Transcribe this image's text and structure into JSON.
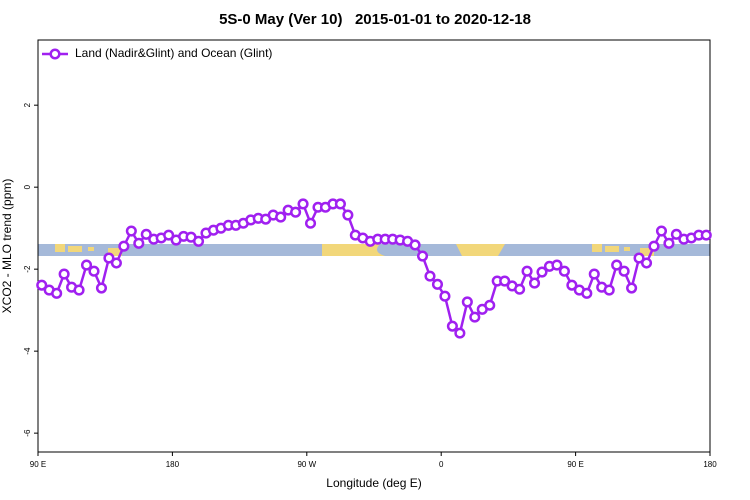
{
  "chart_data": {
    "type": "line",
    "title": "5S-0 May (Ver 10)   2015-01-01 to 2020-12-18",
    "xlabel": "Longitude (deg E)",
    "ylabel": "XCO2 - MLO trend (ppm)",
    "legend": "top-left",
    "xlim": [
      90,
      540
    ],
    "xticks": [
      {
        "value": 90,
        "label": "90 E"
      },
      {
        "value": 180,
        "label": "180"
      },
      {
        "value": 270,
        "label": "90 W"
      },
      {
        "value": 360,
        "label": "0"
      },
      {
        "value": 450,
        "label": "90 E"
      },
      {
        "value": 540,
        "label": "180"
      }
    ],
    "ylim": [
      -6.46,
      3.59
    ],
    "yticks": [
      2,
      0,
      -2,
      -4,
      -6
    ],
    "x": [
      92.5,
      97.5,
      102.5,
      107.5,
      112.5,
      117.5,
      122.5,
      127.5,
      132.5,
      137.5,
      142.5,
      147.5,
      152.5,
      157.5,
      162.5,
      167.5,
      172.5,
      177.5,
      182.5,
      187.5,
      192.5,
      197.5,
      202.5,
      207.5,
      212.5,
      217.5,
      222.5,
      227.5,
      232.5,
      237.5,
      242.5,
      247.5,
      252.5,
      257.5,
      262.5,
      267.5,
      272.5,
      277.5,
      282.5,
      287.5,
      292.5,
      297.5,
      302.5,
      307.5,
      312.5,
      317.5,
      322.5,
      327.5,
      332.5,
      337.5,
      342.5,
      347.5,
      352.5,
      357.5,
      362.5,
      367.5,
      372.5,
      377.5,
      382.5,
      387.5,
      392.5,
      397.5,
      402.5,
      407.5,
      412.5,
      417.5,
      422.5,
      427.5,
      432.5,
      437.5,
      442.5,
      447.5,
      452.5,
      457.5,
      462.5,
      467.5,
      472.5,
      477.5,
      482.5,
      487.5,
      492.5,
      497.5,
      502.5,
      507.5,
      512.5,
      517.5,
      522.5,
      527.5,
      532.5,
      537.5
    ],
    "series": [
      {
        "name": "Land (Nadir&Glint) and Ocean (Glint)",
        "color": "#a020f0",
        "values": [
          -2.39,
          -2.51,
          -2.59,
          -2.12,
          -2.44,
          -2.51,
          -1.9,
          -2.05,
          -2.46,
          -1.73,
          -1.85,
          -1.44,
          -1.07,
          -1.37,
          -1.15,
          -1.27,
          -1.24,
          -1.17,
          -1.29,
          -1.2,
          -1.22,
          -1.32,
          -1.12,
          -1.05,
          -1.0,
          -0.93,
          -0.93,
          -0.88,
          -0.8,
          -0.76,
          -0.78,
          -0.68,
          -0.73,
          -0.56,
          -0.61,
          -0.41,
          -0.88,
          -0.49,
          -0.49,
          -0.41,
          -0.41,
          -0.68,
          -1.17,
          -1.24,
          -1.32,
          -1.27,
          -1.27,
          -1.27,
          -1.29,
          -1.32,
          -1.41,
          -1.68,
          -2.17,
          -2.37,
          -2.66,
          -3.39,
          -3.56,
          -2.8,
          -3.17,
          -2.98,
          -2.88,
          -2.29,
          -2.29,
          -2.41,
          -2.49,
          -2.05,
          -2.34,
          -2.07,
          -1.93,
          -1.9,
          -2.05,
          -2.39,
          -2.51,
          -2.59,
          -2.12,
          -2.44,
          -2.51,
          -1.9,
          -2.05,
          -2.46,
          -1.73,
          -1.85,
          -1.44,
          -1.07,
          -1.37,
          -1.15,
          -1.27,
          -1.24,
          -1.17,
          -1.17
        ]
      }
    ]
  }
}
